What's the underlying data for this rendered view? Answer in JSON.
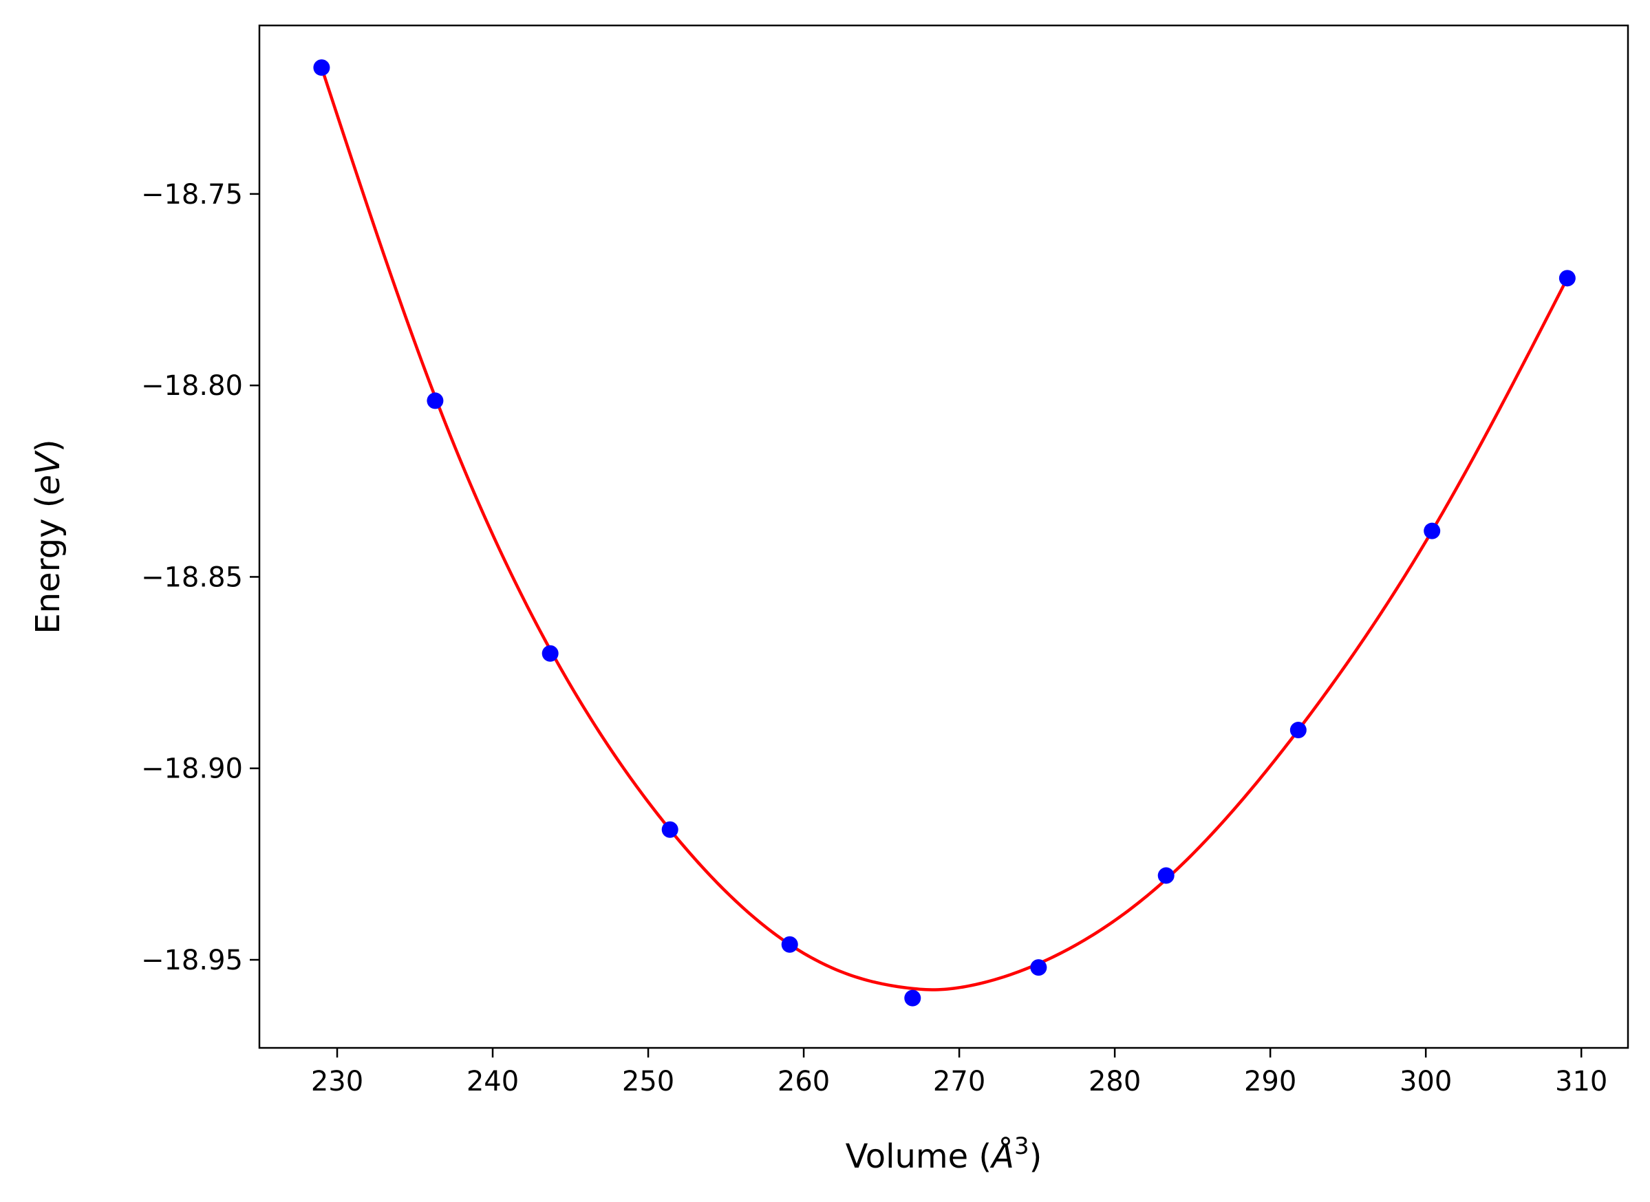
{
  "chart_data": {
    "type": "scatter",
    "xlabel": "Volume ($\\AA^3$)",
    "xlabel_parts": {
      "pre": "Volume (",
      "symbol": "Å",
      "sup": "3",
      "post": ")"
    },
    "ylabel": "Energy ($eV$)",
    "ylabel_parts": {
      "pre": "Energy (",
      "italic": "eV",
      "post": ")"
    },
    "xlim": [
      225,
      313
    ],
    "ylim": [
      -18.973,
      -18.706
    ],
    "xticks": [
      230,
      240,
      250,
      260,
      270,
      280,
      290,
      300,
      310
    ],
    "xtick_labels": [
      "230",
      "240",
      "250",
      "260",
      "270",
      "280",
      "290",
      "300",
      "310"
    ],
    "yticks": [
      -18.75,
      -18.8,
      -18.85,
      -18.9,
      -18.95
    ],
    "ytick_labels": [
      "−18.75",
      "−18.80",
      "−18.85",
      "−18.90",
      "−18.95"
    ],
    "grid": false,
    "series": [
      {
        "kind": "points",
        "color": "#0000ff",
        "x": [
          229.0,
          236.3,
          243.7,
          251.4,
          259.1,
          267.0,
          275.1,
          283.3,
          291.8,
          300.4,
          309.1
        ],
        "y": [
          -18.717,
          -18.804,
          -18.87,
          -18.916,
          -18.946,
          -18.96,
          -18.952,
          -18.928,
          -18.89,
          -18.838,
          -18.772
        ]
      },
      {
        "kind": "fit-curve",
        "color": "#ff0000",
        "x": [
          229.0,
          236.3,
          243.7,
          251.4,
          259.1,
          263.0,
          267.0,
          268.0,
          271.0,
          275.1,
          283.3,
          291.8,
          300.4,
          309.1
        ],
        "y": [
          -18.717,
          -18.803,
          -18.869,
          -18.916,
          -18.946,
          -18.954,
          -18.9575,
          -18.9578,
          -18.9565,
          -18.951,
          -18.929,
          -18.89,
          -18.838,
          -18.772
        ]
      }
    ]
  }
}
